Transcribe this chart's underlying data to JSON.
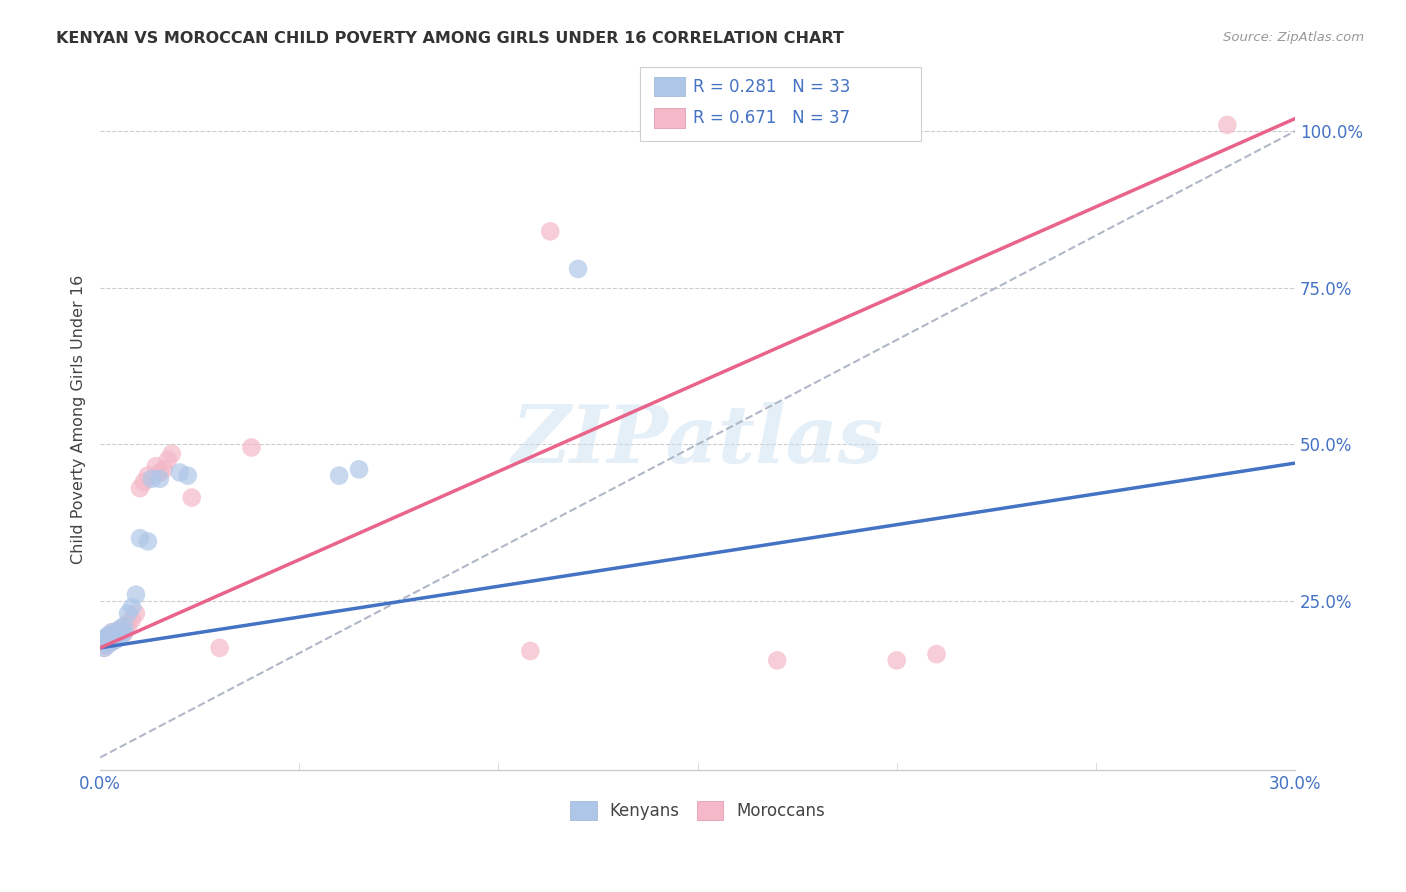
{
  "title": "KENYAN VS MOROCCAN CHILD POVERTY AMONG GIRLS UNDER 16 CORRELATION CHART",
  "source": "Source: ZipAtlas.com",
  "ylabel": "Child Poverty Among Girls Under 16",
  "xlim": [
    0.0,
    0.3
  ],
  "ylim": [
    -0.02,
    1.1
  ],
  "xtick_labels": [
    "0.0%",
    "30.0%"
  ],
  "xtick_vals": [
    0.0,
    0.3
  ],
  "ytick_labels": [
    "25.0%",
    "50.0%",
    "75.0%",
    "100.0%"
  ],
  "ytick_vals": [
    0.25,
    0.5,
    0.75,
    1.0
  ],
  "kenyan_R": 0.281,
  "kenyan_N": 33,
  "moroccan_R": 0.671,
  "moroccan_N": 37,
  "kenyan_color": "#aec6e8",
  "moroccan_color": "#f4b8c8",
  "kenyan_line_color": "#4472c4",
  "moroccan_line_color": "#e8648a",
  "dashed_line_color": "#b0b8c8",
  "watermark_text": "ZIPatlas",
  "kenyan_line": [
    0.0,
    0.175,
    0.3,
    0.47
  ],
  "moroccan_line": [
    0.0,
    0.175,
    0.3,
    1.02
  ],
  "dash_line": [
    0.0,
    0.0,
    0.3,
    1.0
  ],
  "kenyan_x": [
    0.001,
    0.001,
    0.001,
    0.001,
    0.002,
    0.002,
    0.002,
    0.002,
    0.002,
    0.003,
    0.003,
    0.003,
    0.003,
    0.004,
    0.004,
    0.004,
    0.005,
    0.005,
    0.005,
    0.006,
    0.006,
    0.007,
    0.008,
    0.009,
    0.01,
    0.012,
    0.013,
    0.015,
    0.02,
    0.022,
    0.06,
    0.065,
    0.12
  ],
  "kenyan_y": [
    0.175,
    0.182,
    0.185,
    0.19,
    0.18,
    0.183,
    0.188,
    0.192,
    0.195,
    0.185,
    0.188,
    0.192,
    0.2,
    0.188,
    0.192,
    0.2,
    0.192,
    0.195,
    0.205,
    0.2,
    0.21,
    0.23,
    0.24,
    0.26,
    0.35,
    0.345,
    0.445,
    0.445,
    0.455,
    0.45,
    0.45,
    0.46,
    0.78
  ],
  "moroccan_x": [
    0.001,
    0.001,
    0.001,
    0.002,
    0.002,
    0.002,
    0.003,
    0.003,
    0.003,
    0.003,
    0.004,
    0.004,
    0.005,
    0.005,
    0.006,
    0.006,
    0.007,
    0.007,
    0.008,
    0.009,
    0.01,
    0.011,
    0.012,
    0.014,
    0.015,
    0.016,
    0.017,
    0.018,
    0.023,
    0.03,
    0.038,
    0.108,
    0.113,
    0.17,
    0.2,
    0.21,
    0.283
  ],
  "moroccan_y": [
    0.175,
    0.18,
    0.185,
    0.185,
    0.188,
    0.192,
    0.185,
    0.19,
    0.195,
    0.2,
    0.19,
    0.195,
    0.195,
    0.205,
    0.198,
    0.205,
    0.21,
    0.215,
    0.22,
    0.23,
    0.43,
    0.44,
    0.45,
    0.465,
    0.455,
    0.46,
    0.475,
    0.485,
    0.415,
    0.175,
    0.495,
    0.17,
    0.84,
    0.155,
    0.155,
    0.165,
    1.01
  ]
}
